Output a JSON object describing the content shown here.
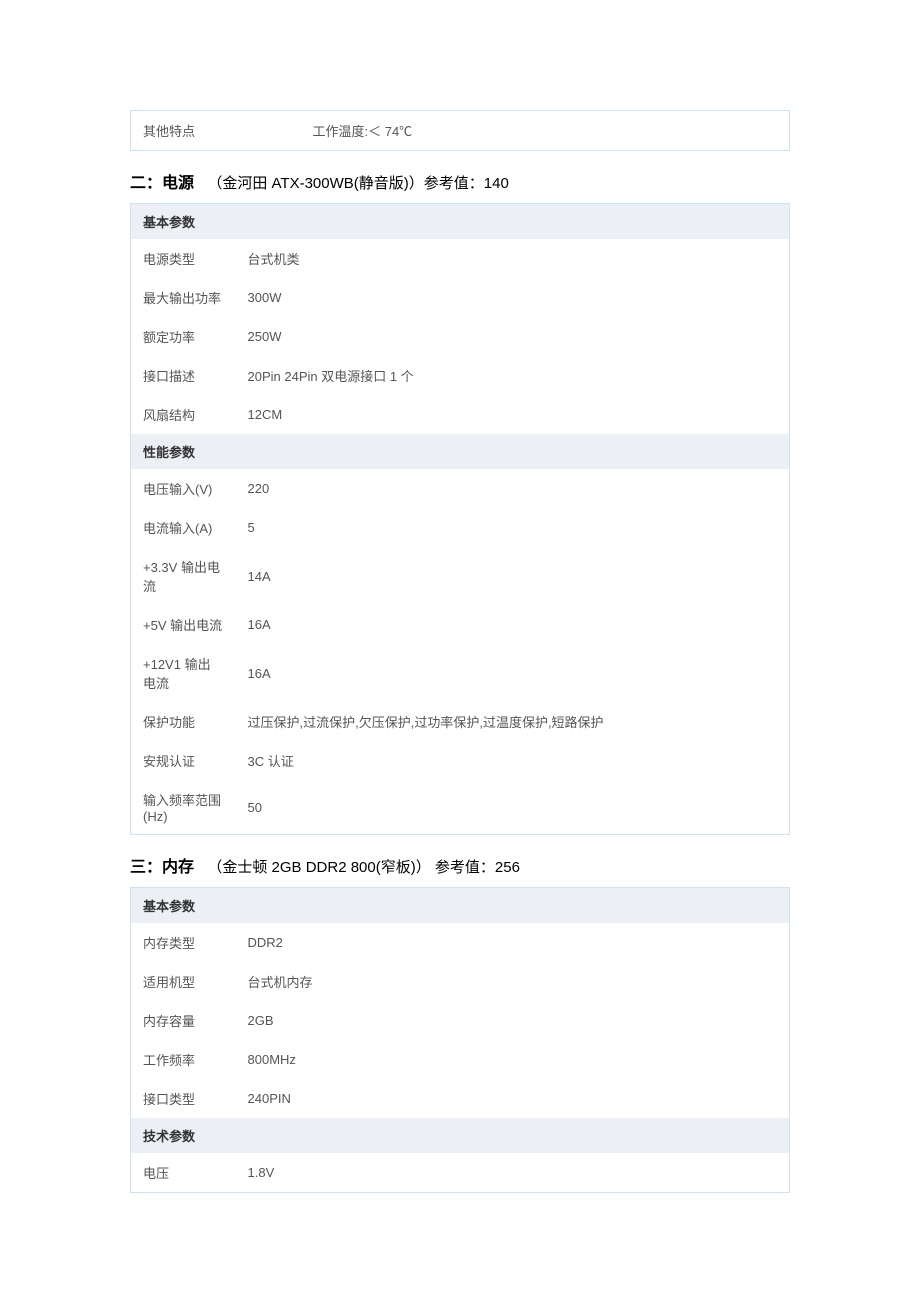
{
  "colors": {
    "border": "#cde4f0",
    "section_bg": "#eceff3",
    "text": "#555",
    "heading_text": "#000"
  },
  "top_table": {
    "rows": [
      {
        "label": "其他特点",
        "value": "工作温度:＜ 74℃"
      }
    ]
  },
  "section2": {
    "heading_prefix": "二：电源",
    "heading_product": "（金河田 ATX-300WB(静音版)）参考值：140",
    "groups": [
      {
        "title": "基本参数",
        "rows": [
          {
            "label": "电源类型",
            "value": "台式机类"
          },
          {
            "label": "最大输出功率",
            "value": "300W"
          },
          {
            "label": "额定功率",
            "value": "250W"
          },
          {
            "label": "接口描述",
            "value": "20Pin 24Pin 双电源接口 1 个"
          },
          {
            "label": "风扇结构",
            "value": "12CM"
          }
        ]
      },
      {
        "title": "性能参数",
        "rows": [
          {
            "label": "电压输入(V)",
            "value": "220"
          },
          {
            "label": "电流输入(A)",
            "value": "5"
          },
          {
            "label": "+3.3V 输出电流",
            "value": "14A"
          },
          {
            "label": "+5V 输出电流",
            "value": "16A"
          },
          {
            "label": "+12V1 输出电流",
            "value": "16A"
          },
          {
            "label": "保护功能",
            "value": "过压保护,过流保护,欠压保护,过功率保护,过温度保护,短路保护"
          },
          {
            "label": "安规认证",
            "value": "3C 认证"
          },
          {
            "label": "输入频率范围(Hz)",
            "value": "50"
          }
        ]
      }
    ]
  },
  "section3": {
    "heading_prefix": "三：内存",
    "heading_product": "（金士顿 2GB DDR2 800(窄板)） 参考值：256",
    "groups": [
      {
        "title": "基本参数",
        "rows": [
          {
            "label": "内存类型",
            "value": "DDR2"
          },
          {
            "label": "适用机型",
            "value": "台式机内存"
          },
          {
            "label": "内存容量",
            "value": "2GB"
          },
          {
            "label": "工作频率",
            "value": "800MHz"
          },
          {
            "label": "接口类型",
            "value": "240PIN"
          }
        ]
      },
      {
        "title": "技术参数",
        "rows": [
          {
            "label": "电压",
            "value": "1.8V"
          }
        ]
      }
    ]
  }
}
